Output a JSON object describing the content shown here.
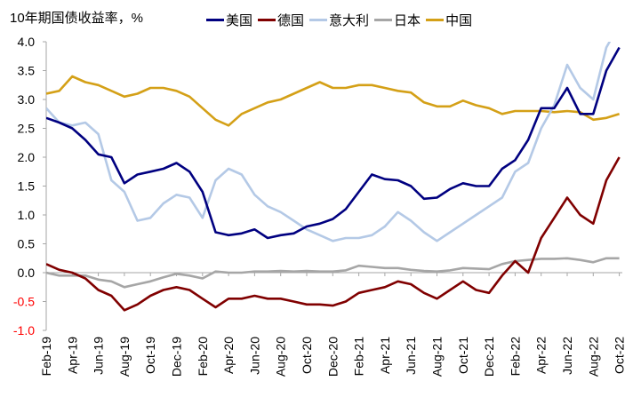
{
  "chart_data": {
    "type": "line",
    "title": "10年期国债收益率，%",
    "xlabel": "",
    "ylabel": "",
    "ylim": [
      -1.0,
      4.0
    ],
    "yticks": [
      "4.0",
      "3.5",
      "3.0",
      "2.5",
      "2.0",
      "1.5",
      "1.0",
      "0.5",
      "0.0",
      "-0.5",
      "-1.0"
    ],
    "ytick_values": [
      4.0,
      3.5,
      3.0,
      2.5,
      2.0,
      1.5,
      1.0,
      0.5,
      0.0,
      -0.5,
      -1.0
    ],
    "negative_tick_color": "#ff0000",
    "xticks": [
      "Feb-19",
      "Apr-19",
      "Jun-19",
      "Aug-19",
      "Oct-19",
      "Dec-19",
      "Feb-20",
      "Apr-20",
      "Jun-20",
      "Aug-20",
      "Oct-20",
      "Dec-20",
      "Feb-21",
      "Apr-21",
      "Jun-21",
      "Aug-21",
      "Oct-21",
      "Dec-21",
      "Feb-22",
      "Apr-22",
      "Jun-22",
      "Aug-22",
      "Oct-22"
    ],
    "legend_position": "top",
    "grid": false,
    "x": [
      "2019-02",
      "2019-03",
      "2019-04",
      "2019-05",
      "2019-06",
      "2019-07",
      "2019-08",
      "2019-09",
      "2019-10",
      "2019-11",
      "2019-12",
      "2020-01",
      "2020-02",
      "2020-03",
      "2020-04",
      "2020-05",
      "2020-06",
      "2020-07",
      "2020-08",
      "2020-09",
      "2020-10",
      "2020-11",
      "2020-12",
      "2021-01",
      "2021-02",
      "2021-03",
      "2021-04",
      "2021-05",
      "2021-06",
      "2021-07",
      "2021-08",
      "2021-09",
      "2021-10",
      "2021-11",
      "2021-12",
      "2022-01",
      "2022-02",
      "2022-03",
      "2022-04",
      "2022-05",
      "2022-06",
      "2022-07",
      "2022-08",
      "2022-09",
      "2022-10"
    ],
    "series": [
      {
        "name": "美国",
        "color": "#000080",
        "values": [
          2.68,
          2.6,
          2.5,
          2.3,
          2.05,
          2.0,
          1.55,
          1.7,
          1.75,
          1.8,
          1.9,
          1.75,
          1.4,
          0.7,
          0.65,
          0.68,
          0.75,
          0.6,
          0.65,
          0.68,
          0.8,
          0.85,
          0.93,
          1.1,
          1.4,
          1.7,
          1.62,
          1.6,
          1.5,
          1.28,
          1.3,
          1.45,
          1.55,
          1.5,
          1.5,
          1.8,
          1.95,
          2.3,
          2.85,
          2.85,
          3.2,
          2.75,
          2.75,
          3.5,
          3.9
        ]
      },
      {
        "name": "德国",
        "color": "#800000",
        "values": [
          0.15,
          0.05,
          0.0,
          -0.1,
          -0.3,
          -0.4,
          -0.65,
          -0.55,
          -0.4,
          -0.3,
          -0.25,
          -0.3,
          -0.45,
          -0.6,
          -0.45,
          -0.45,
          -0.4,
          -0.45,
          -0.45,
          -0.5,
          -0.55,
          -0.55,
          -0.57,
          -0.5,
          -0.35,
          -0.3,
          -0.25,
          -0.15,
          -0.2,
          -0.35,
          -0.45,
          -0.3,
          -0.15,
          -0.3,
          -0.35,
          -0.05,
          0.2,
          0.0,
          0.6,
          0.95,
          1.3,
          1.0,
          0.85,
          1.6,
          2.0
        ]
      },
      {
        "name": "意大利",
        "color": "#B4C9E6",
        "values": [
          2.85,
          2.6,
          2.55,
          2.6,
          2.4,
          1.6,
          1.4,
          0.9,
          0.95,
          1.2,
          1.35,
          1.3,
          0.95,
          1.6,
          1.8,
          1.7,
          1.35,
          1.15,
          1.05,
          0.9,
          0.75,
          0.65,
          0.55,
          0.6,
          0.6,
          0.65,
          0.8,
          1.05,
          0.9,
          0.7,
          0.55,
          0.7,
          0.85,
          1.0,
          1.15,
          1.3,
          1.75,
          1.9,
          2.5,
          2.9,
          3.6,
          3.2,
          3.0,
          3.9,
          4.3
        ]
      },
      {
        "name": "日本",
        "color": "#A6A6A6",
        "values": [
          0.0,
          -0.05,
          -0.05,
          -0.05,
          -0.12,
          -0.15,
          -0.25,
          -0.2,
          -0.15,
          -0.08,
          -0.02,
          -0.05,
          -0.1,
          0.02,
          0.0,
          0.0,
          0.02,
          0.02,
          0.03,
          0.02,
          0.03,
          0.02,
          0.02,
          0.04,
          0.12,
          0.1,
          0.08,
          0.08,
          0.05,
          0.03,
          0.02,
          0.04,
          0.08,
          0.07,
          0.06,
          0.15,
          0.2,
          0.22,
          0.24,
          0.24,
          0.25,
          0.22,
          0.18,
          0.25,
          0.25
        ]
      },
      {
        "name": "中国",
        "color": "#D4A017",
        "values": [
          3.1,
          3.15,
          3.4,
          3.3,
          3.25,
          3.15,
          3.05,
          3.1,
          3.2,
          3.2,
          3.15,
          3.05,
          2.85,
          2.65,
          2.55,
          2.75,
          2.85,
          2.95,
          3.0,
          3.1,
          3.2,
          3.3,
          3.2,
          3.2,
          3.25,
          3.25,
          3.2,
          3.15,
          3.12,
          2.95,
          2.88,
          2.88,
          2.98,
          2.9,
          2.85,
          2.75,
          2.8,
          2.8,
          2.8,
          2.78,
          2.8,
          2.78,
          2.65,
          2.68,
          2.75
        ]
      }
    ]
  }
}
